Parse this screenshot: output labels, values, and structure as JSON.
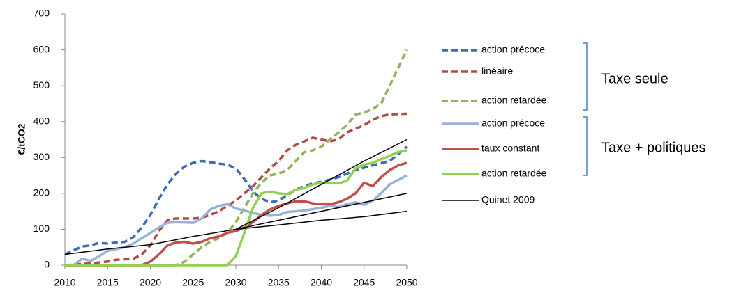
{
  "chart_data": {
    "type": "line",
    "y_label": "€/tCO2",
    "xlim": [
      2010,
      2050
    ],
    "xticks": [
      2010,
      2015,
      2020,
      2025,
      2030,
      2035,
      2040,
      2045,
      2050
    ],
    "ylim": [
      0,
      700
    ],
    "yticks": [
      0,
      100,
      200,
      300,
      400,
      500,
      600,
      700
    ],
    "grid": false,
    "annotations": [
      "Taxe seule",
      "Taxe + politiques"
    ],
    "series": [
      {
        "name": "action précoce",
        "color": "#3a6db3",
        "dashed": true,
        "x": [
          2010,
          2012,
          2013,
          2014,
          2015,
          2016,
          2017,
          2018,
          2019,
          2020,
          2021,
          2022,
          2023,
          2024,
          2025,
          2026,
          2027,
          2028,
          2029,
          2030,
          2031,
          2032,
          2033,
          2034,
          2035,
          2036,
          2037,
          2038,
          2039,
          2040,
          2042,
          2044,
          2046,
          2048,
          2050
        ],
        "values": [
          30,
          52,
          55,
          62,
          60,
          63,
          65,
          78,
          105,
          140,
          185,
          225,
          255,
          275,
          285,
          290,
          287,
          283,
          280,
          270,
          240,
          205,
          185,
          175,
          180,
          195,
          210,
          220,
          228,
          232,
          245,
          265,
          278,
          290,
          330
        ]
      },
      {
        "name": "linéaire",
        "color": "#b34a46",
        "dashed": true,
        "x": [
          2010,
          2013,
          2015,
          2016,
          2018,
          2019,
          2020,
          2021,
          2022,
          2023,
          2025,
          2026,
          2027,
          2028,
          2029,
          2030,
          2031,
          2032,
          2033,
          2034,
          2035,
          2036,
          2037,
          2038,
          2039,
          2040,
          2041,
          2042,
          2043,
          2044,
          2045,
          2046,
          2047,
          2048,
          2050
        ],
        "values": [
          0,
          5,
          10,
          15,
          18,
          30,
          55,
          95,
          125,
          130,
          130,
          132,
          140,
          150,
          165,
          180,
          200,
          220,
          245,
          270,
          290,
          320,
          335,
          345,
          355,
          350,
          345,
          350,
          370,
          380,
          390,
          405,
          415,
          420,
          422
        ]
      },
      {
        "name": "action retardée",
        "color": "#8fb556",
        "dashed": true,
        "x": [
          2010,
          2023,
          2024,
          2025,
          2026,
          2027,
          2028,
          2029,
          2030,
          2031,
          2032,
          2033,
          2034,
          2035,
          2036,
          2037,
          2038,
          2039,
          2040,
          2041,
          2042,
          2043,
          2044,
          2045,
          2046,
          2047,
          2048,
          2049,
          2050
        ],
        "values": [
          0,
          0,
          10,
          30,
          50,
          65,
          75,
          90,
          120,
          160,
          200,
          230,
          250,
          255,
          265,
          290,
          315,
          320,
          330,
          350,
          370,
          390,
          420,
          425,
          435,
          450,
          500,
          550,
          600
        ]
      },
      {
        "name": "action précoce",
        "color": "#95b3d7",
        "dashed": false,
        "x": [
          2010,
          2011,
          2012,
          2013,
          2014,
          2015,
          2016,
          2017,
          2018,
          2019,
          2020,
          2021,
          2022,
          2023,
          2025,
          2026,
          2027,
          2028,
          2029,
          2030,
          2031,
          2032,
          2033,
          2034,
          2035,
          2036,
          2038,
          2040,
          2041,
          2042,
          2043,
          2044,
          2045,
          2046,
          2047,
          2048,
          2050
        ],
        "values": [
          0,
          0,
          18,
          12,
          25,
          40,
          45,
          50,
          60,
          75,
          90,
          105,
          118,
          120,
          118,
          130,
          155,
          165,
          170,
          158,
          152,
          145,
          140,
          138,
          140,
          148,
          152,
          160,
          165,
          162,
          170,
          175,
          168,
          180,
          200,
          225,
          250
        ]
      },
      {
        "name": "taux constant",
        "color": "#c0504d",
        "dashed": false,
        "x": [
          2010,
          2019,
          2020,
          2021,
          2022,
          2023,
          2024,
          2025,
          2026,
          2027,
          2028,
          2029,
          2030,
          2031,
          2032,
          2033,
          2034,
          2035,
          2036,
          2037,
          2038,
          2039,
          2040,
          2041,
          2042,
          2043,
          2044,
          2045,
          2046,
          2047,
          2048,
          2049,
          2050
        ],
        "values": [
          0,
          0,
          10,
          30,
          55,
          63,
          65,
          60,
          65,
          75,
          80,
          90,
          95,
          105,
          120,
          140,
          155,
          165,
          172,
          178,
          178,
          172,
          170,
          170,
          175,
          185,
          200,
          230,
          220,
          245,
          265,
          278,
          285
        ]
      },
      {
        "name": "action retardée",
        "color": "#92d050",
        "dashed": false,
        "x": [
          2010,
          2029,
          2030,
          2031,
          2032,
          2033,
          2034,
          2035,
          2036,
          2037,
          2038,
          2039,
          2040,
          2041,
          2042,
          2043,
          2044,
          2045,
          2046,
          2047,
          2048,
          2049,
          2050
        ],
        "values": [
          0,
          0,
          25,
          90,
          160,
          200,
          205,
          200,
          198,
          210,
          215,
          225,
          230,
          228,
          228,
          235,
          270,
          280,
          285,
          295,
          305,
          315,
          320
        ]
      },
      {
        "name": "Quinet 2009",
        "color": "#000000",
        "dashed": false,
        "x": [
          2010,
          2015,
          2020,
          2025,
          2030,
          2035,
          2040,
          2045,
          2050
        ],
        "values": [
          30,
          45,
          57,
          80,
          100,
          160,
          225,
          290,
          350
        ]
      },
      {
        "color": "#000000",
        "dashed": false,
        "x": [
          2030,
          2035,
          2040,
          2045,
          2050
        ],
        "values": [
          100,
          125,
          150,
          175,
          200
        ]
      },
      {
        "color": "#000000",
        "dashed": false,
        "x": [
          2030,
          2035,
          2040,
          2045,
          2050
        ],
        "values": [
          100,
          112,
          125,
          135,
          150
        ]
      }
    ]
  }
}
